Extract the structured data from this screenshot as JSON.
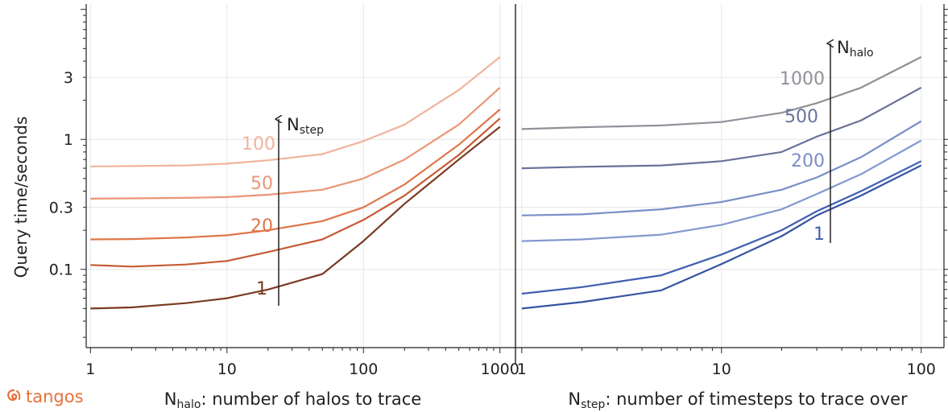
{
  "brand": {
    "name": "tangos",
    "color": "#e8703a",
    "icon": "tangos-swirl-icon"
  },
  "figure": {
    "ylabel": "Query time/seconds"
  },
  "chart_data": [
    {
      "type": "line",
      "id": "left",
      "xscale": "log",
      "yscale": "log",
      "xlim": [
        0.93,
        1300
      ],
      "ylim": [
        0.025,
        11
      ],
      "xticks": [
        1,
        10,
        100,
        1000
      ],
      "xtick_labels": [
        "1",
        "10",
        "100",
        "1000"
      ],
      "yticks": [
        0.1,
        0.3,
        1,
        3
      ],
      "ytick_labels": [
        "0.1",
        "0.3",
        "1",
        "3"
      ],
      "ylabel": "Query time/seconds",
      "xlabel": {
        "symbol": "N",
        "sub": "halo",
        "text": ": number of halos to trace"
      },
      "grid": true,
      "x": [
        1,
        2,
        5,
        10,
        20,
        50,
        100,
        200,
        500,
        1000
      ],
      "series": [
        {
          "label": "1",
          "color": "#7a3a22",
          "values": [
            0.05,
            0.051,
            0.055,
            0.06,
            0.07,
            0.092,
            0.165,
            0.32,
            0.7,
            1.25
          ]
        },
        {
          "label": "20",
          "color": "#c55a35",
          "values": [
            0.108,
            0.105,
            0.109,
            0.116,
            0.136,
            0.17,
            0.24,
            0.37,
            0.76,
            1.45
          ]
        },
        {
          "label": "20",
          "color": "#e0764a",
          "values": [
            0.17,
            0.171,
            0.176,
            0.183,
            0.2,
            0.235,
            0.3,
            0.45,
            0.91,
            1.7
          ]
        },
        {
          "label": "50",
          "color": "#eb9676",
          "values": [
            0.35,
            0.352,
            0.355,
            0.36,
            0.375,
            0.41,
            0.5,
            0.7,
            1.3,
            2.5
          ]
        },
        {
          "label": "100",
          "color": "#f0b49c",
          "values": [
            0.62,
            0.623,
            0.63,
            0.65,
            0.69,
            0.77,
            0.97,
            1.3,
            2.4,
            4.3
          ]
        }
      ],
      "annotation": {
        "symbol": "N",
        "sub": "step"
      }
    },
    {
      "type": "line",
      "id": "right",
      "xscale": "log",
      "yscale": "log",
      "xlim": [
        0.93,
        130
      ],
      "ylim": [
        0.025,
        11
      ],
      "xticks": [
        1,
        10,
        100
      ],
      "xtick_labels": [
        "1",
        "10",
        "100"
      ],
      "xlabel": {
        "symbol": "N",
        "sub": "step",
        "text": ": number of timesteps to trace over"
      },
      "grid": true,
      "x": [
        1,
        2,
        5,
        10,
        20,
        30,
        50,
        100
      ],
      "series": [
        {
          "label": "",
          "color": "#3553a0",
          "values": [
            0.05,
            0.056,
            0.069,
            0.11,
            0.18,
            0.26,
            0.37,
            0.63
          ]
        },
        {
          "label": "1",
          "color": "#3f5fb0",
          "values": [
            0.065,
            0.073,
            0.09,
            0.13,
            0.2,
            0.28,
            0.4,
            0.68
          ]
        },
        {
          "label": "",
          "color": "#8398cf",
          "values": [
            0.165,
            0.17,
            0.185,
            0.22,
            0.29,
            0.38,
            0.54,
            0.98
          ]
        },
        {
          "label": "200",
          "color": "#7a8fc8",
          "values": [
            0.26,
            0.265,
            0.29,
            0.33,
            0.41,
            0.51,
            0.73,
            1.38
          ]
        },
        {
          "label": "500",
          "color": "#6a7298",
          "values": [
            0.6,
            0.615,
            0.63,
            0.68,
            0.8,
            1.05,
            1.4,
            2.5
          ]
        },
        {
          "label": "1000",
          "color": "#909099",
          "values": [
            1.2,
            1.24,
            1.28,
            1.36,
            1.6,
            1.9,
            2.5,
            4.3
          ]
        }
      ],
      "annotation": {
        "symbol": "N",
        "sub": "halo"
      }
    }
  ]
}
